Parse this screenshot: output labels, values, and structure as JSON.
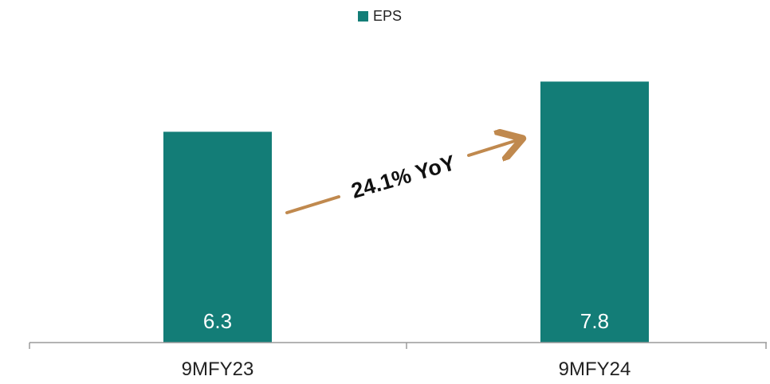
{
  "chart_data": {
    "type": "bar",
    "categories": [
      "9MFY23",
      "9MFY24"
    ],
    "series": [
      {
        "name": "EPS",
        "values": [
          6.3,
          7.8
        ]
      }
    ],
    "value_labels": [
      "6.3",
      "7.8"
    ],
    "ylim": [
      0,
      9
    ],
    "grid": false,
    "legend": {
      "position": "top-center"
    },
    "annotation": {
      "text": "24.1% YoY"
    },
    "colors": {
      "bar": "#137d77",
      "arrow": "#c0894e",
      "axis": "#9a9a9a",
      "text": "#222222",
      "value_text": "#ffffff"
    }
  }
}
